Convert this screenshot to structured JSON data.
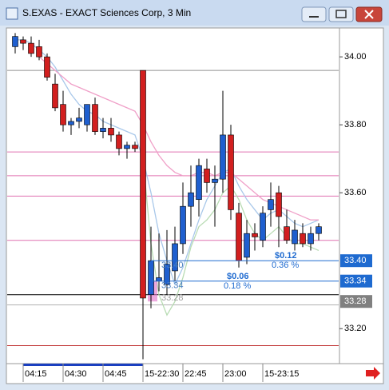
{
  "window_title": "S.EXAS - EXACT Sciences Corp, 3 Min",
  "chart_data": {
    "type": "candlestick",
    "categories": [
      null,
      "04:15",
      null,
      null,
      null,
      null,
      "04:30",
      null,
      null,
      null,
      null,
      "04:45",
      null,
      null,
      null,
      null,
      "15-22:30",
      null,
      null,
      null,
      null,
      "22:45",
      null,
      null,
      null,
      null,
      "23:00",
      null,
      null,
      null,
      null,
      "15-23:15",
      null,
      null,
      null,
      null,
      null,
      null,
      null
    ],
    "open": [
      34.03,
      34.05,
      34.04,
      34.03,
      34.0,
      33.92,
      33.86,
      33.8,
      33.81,
      33.8,
      33.86,
      33.78,
      33.79,
      33.77,
      33.73,
      33.74,
      33.96,
      33.3,
      33.34,
      33.33,
      33.37,
      33.45,
      33.56,
      33.58,
      33.67,
      33.63,
      33.64,
      33.77,
      33.54,
      33.41,
      33.48,
      33.46,
      33.55,
      33.6,
      33.5,
      33.45,
      33.48,
      33.45,
      33.48
    ],
    "high": [
      34.07,
      34.06,
      34.06,
      34.05,
      34.01,
      33.95,
      33.9,
      33.82,
      33.85,
      33.86,
      33.88,
      33.82,
      33.82,
      33.78,
      33.75,
      33.75,
      33.96,
      33.5,
      33.48,
      33.49,
      33.5,
      33.63,
      33.68,
      33.7,
      33.7,
      33.68,
      33.9,
      33.8,
      33.57,
      33.52,
      33.51,
      33.56,
      33.63,
      33.62,
      33.55,
      33.52,
      33.51,
      33.5,
      33.51
    ],
    "low": [
      34.01,
      34.02,
      34.0,
      33.99,
      33.93,
      33.84,
      33.78,
      33.77,
      33.79,
      33.78,
      33.77,
      33.76,
      33.75,
      33.71,
      33.7,
      33.72,
      33.11,
      33.26,
      33.31,
      33.3,
      33.34,
      33.42,
      33.5,
      33.53,
      33.6,
      33.5,
      33.6,
      33.52,
      33.38,
      33.39,
      33.43,
      33.44,
      33.5,
      33.44,
      33.45,
      33.43,
      33.44,
      33.43,
      33.46
    ],
    "close": [
      34.06,
      34.04,
      34.01,
      34.0,
      33.94,
      33.85,
      33.8,
      33.81,
      33.82,
      33.86,
      33.78,
      33.79,
      33.77,
      33.73,
      33.74,
      33.73,
      33.29,
      33.4,
      33.35,
      33.39,
      33.45,
      33.56,
      33.6,
      33.68,
      33.63,
      33.64,
      33.77,
      33.55,
      33.4,
      33.48,
      33.47,
      33.54,
      33.58,
      33.53,
      33.46,
      33.49,
      33.45,
      33.48,
      33.5
    ],
    "up_color": "#1f5fcf",
    "down_color": "#d21f1f",
    "series": [
      {
        "color": "#a9c8ea",
        "values": [
          34.05,
          34.05,
          34.04,
          34.02,
          34.0,
          33.97,
          33.93,
          33.89,
          33.86,
          33.84,
          33.83,
          33.81,
          33.8,
          33.79,
          33.78,
          33.77,
          33.7,
          33.6,
          33.48,
          33.4,
          33.33,
          33.38,
          33.45,
          33.52,
          33.58,
          33.62,
          33.66,
          33.67,
          33.62,
          33.58,
          33.55,
          33.52,
          33.54,
          33.55,
          33.53,
          33.51,
          33.5,
          33.51,
          33.52
        ]
      },
      {
        "color": "#f0a0c8",
        "values": [
          null,
          null,
          null,
          34.0,
          33.98,
          33.96,
          33.94,
          33.92,
          33.91,
          33.9,
          33.89,
          33.88,
          33.87,
          33.86,
          33.85,
          33.84,
          33.8,
          33.75,
          33.71,
          33.68,
          33.66,
          33.65,
          33.65,
          33.66,
          33.66,
          33.65,
          33.66,
          33.66,
          33.64,
          33.62,
          33.6,
          33.58,
          33.57,
          33.56,
          33.55,
          33.54,
          33.53,
          33.52,
          33.52
        ]
      },
      {
        "color": "#b9dcb4",
        "values": [
          null,
          null,
          null,
          null,
          null,
          null,
          null,
          null,
          null,
          null,
          null,
          null,
          null,
          null,
          null,
          null,
          33.7,
          33.45,
          33.3,
          33.24,
          33.28,
          33.35,
          33.44,
          33.5,
          33.52,
          33.55,
          33.6,
          33.62,
          33.58,
          33.52,
          33.48,
          33.46,
          33.48,
          33.5,
          33.47,
          33.45,
          33.45,
          33.44,
          33.43
        ]
      }
    ],
    "hlines": [
      {
        "value": 33.96,
        "color": "#909090"
      },
      {
        "value": 33.72,
        "color": "#e070b0"
      },
      {
        "value": 33.65,
        "color": "#e070b0"
      },
      {
        "value": 33.59,
        "color": "#e070b0"
      },
      {
        "value": 33.46,
        "color": "#e070b0"
      },
      {
        "value": 33.3,
        "color": "#000000"
      },
      {
        "value": 33.27,
        "color": "#b0b0b0"
      },
      {
        "value": 33.15,
        "color": "#c03030"
      }
    ],
    "ylim": [
      33.097,
      34.085
    ],
    "yticks": [
      {
        "value": 34.0,
        "label": "34.00"
      },
      {
        "value": 33.8,
        "label": "33.80"
      },
      {
        "value": 33.6,
        "label": "33.60"
      },
      {
        "value": 33.2,
        "label": "33.20"
      }
    ],
    "price_labels": [
      {
        "value": 33.4,
        "label": "33.40",
        "color": "#1e6ad0"
      },
      {
        "value": 33.34,
        "label": "33.34",
        "color": "#1e6ad0"
      },
      {
        "value": 33.28,
        "label": "33.28",
        "color": "#808080"
      }
    ],
    "annotations": [
      "33.40",
      "33.34",
      "33.28",
      "$0.06",
      "0.18 %",
      "$0.12",
      "0.36 %"
    ]
  }
}
